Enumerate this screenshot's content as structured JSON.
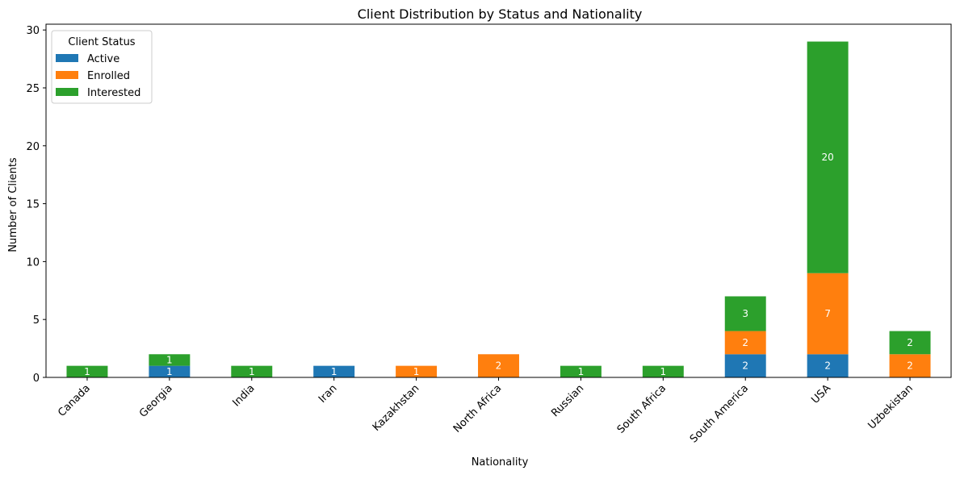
{
  "chart_data": {
    "type": "bar",
    "stacked": true,
    "title": "Client Distribution by Status and Nationality",
    "xlabel": "Nationality",
    "ylabel": "Number of Clients",
    "ylim": [
      0,
      30.5
    ],
    "yticks": [
      0,
      5,
      10,
      15,
      20,
      25,
      30
    ],
    "categories": [
      "Canada",
      "Georgia",
      "India",
      "Iran",
      "Kazakhstan",
      "North Africa",
      "Russian",
      "South Africa",
      "South America",
      "USA",
      "Uzbekistan"
    ],
    "legend": {
      "title": "Client Status",
      "placement": "top-left"
    },
    "series": [
      {
        "name": "Active",
        "color": "#1f77b4",
        "values": [
          0,
          1,
          0,
          1,
          0,
          0,
          0,
          0,
          2,
          2,
          0
        ]
      },
      {
        "name": "Enrolled",
        "color": "#ff7f0e",
        "values": [
          0,
          0,
          0,
          0,
          1,
          2,
          0,
          0,
          2,
          7,
          2
        ]
      },
      {
        "name": "Interested",
        "color": "#2ca02c",
        "values": [
          1,
          1,
          1,
          0,
          0,
          0,
          1,
          1,
          3,
          20,
          2
        ]
      }
    ],
    "grid": false
  }
}
